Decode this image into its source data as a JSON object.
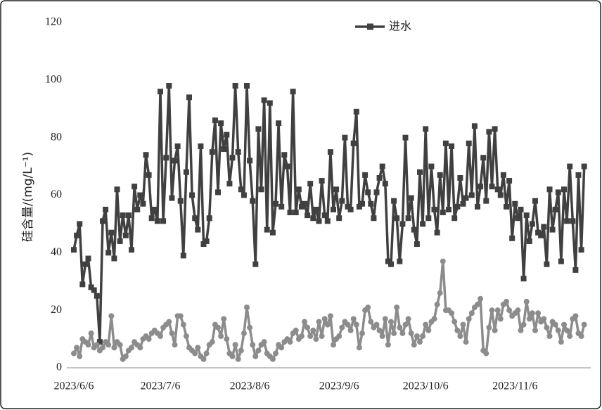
{
  "chart_data": {
    "type": "line",
    "ylabel": "硅含量/(mg/L⁻¹)",
    "categories": [
      "2023/6/6",
      null,
      null,
      null,
      null,
      null,
      null,
      null,
      null,
      null,
      null,
      null,
      null,
      null,
      null,
      null,
      null,
      null,
      null,
      null,
      null,
      null,
      null,
      null,
      null,
      null,
      null,
      null,
      null,
      null,
      "2023/7/6",
      null,
      null,
      null,
      null,
      null,
      null,
      null,
      null,
      null,
      null,
      null,
      null,
      null,
      null,
      null,
      null,
      null,
      null,
      null,
      null,
      null,
      null,
      null,
      null,
      null,
      null,
      null,
      null,
      null,
      null,
      "2023/8/6",
      null,
      null,
      null,
      null,
      null,
      null,
      null,
      null,
      null,
      null,
      null,
      null,
      null,
      null,
      null,
      null,
      null,
      null,
      null,
      null,
      null,
      null,
      null,
      null,
      null,
      null,
      null,
      null,
      null,
      null,
      "2023/9/6",
      null,
      null,
      null,
      null,
      null,
      null,
      null,
      null,
      null,
      null,
      null,
      null,
      null,
      null,
      null,
      null,
      null,
      null,
      null,
      null,
      null,
      null,
      null,
      null,
      null,
      null,
      null,
      null,
      null,
      "2023/10/6",
      null,
      null,
      null,
      null,
      null,
      null,
      null,
      null,
      null,
      null,
      null,
      null,
      null,
      null,
      null,
      null,
      null,
      null,
      null,
      null,
      null,
      null,
      null,
      null,
      null,
      null,
      null,
      null,
      null,
      null,
      "2023/11/6",
      null,
      null,
      null,
      null,
      null,
      null,
      null,
      null,
      null,
      null,
      null,
      null,
      null,
      null,
      null,
      null,
      null,
      null,
      null,
      null,
      null,
      null,
      null,
      null
    ],
    "series": [
      {
        "name": "进水",
        "color": "#404040",
        "marker": "square",
        "values": [
          41,
          46,
          50,
          29,
          36,
          38,
          28,
          27,
          25,
          9,
          51,
          55,
          40,
          47,
          38,
          62,
          44,
          53,
          46,
          53,
          41,
          63,
          55,
          60,
          57,
          74,
          67,
          52,
          55,
          51,
          96,
          51,
          73,
          98,
          59,
          72,
          77,
          58,
          39,
          68,
          94,
          60,
          52,
          48,
          77,
          43,
          44,
          52,
          75,
          86,
          61,
          85,
          76,
          81,
          64,
          73,
          98,
          75,
          62,
          60,
          98,
          72,
          58,
          36,
          83,
          62,
          93,
          48,
          92,
          47,
          57,
          85,
          56,
          74,
          70,
          54,
          96,
          54,
          62,
          56,
          57,
          53,
          64,
          52,
          55,
          51,
          65,
          53,
          51,
          75,
          55,
          62,
          52,
          58,
          80,
          56,
          55,
          78,
          89,
          56,
          57,
          67,
          61,
          57,
          52,
          61,
          66,
          70,
          64,
          37,
          36,
          58,
          52,
          37,
          50,
          80,
          52,
          59,
          48,
          43,
          68,
          50,
          83,
          52,
          70,
          55,
          47,
          67,
          54,
          78,
          55,
          77,
          52,
          56,
          66,
          57,
          59,
          78,
          60,
          84,
          56,
          63,
          73,
          58,
          82,
          63,
          83,
          62,
          60,
          67,
          56,
          65,
          45,
          57,
          52,
          55,
          31,
          53,
          44,
          50,
          58,
          47,
          46,
          49,
          36,
          62,
          48,
          55,
          61,
          37,
          62,
          51,
          70,
          51,
          34,
          67,
          41,
          70
        ]
      },
      {
        "color": "#8c8c8c",
        "marker": "circle",
        "values": [
          5,
          7,
          4,
          10,
          9,
          8,
          12,
          7,
          8,
          6,
          7,
          9,
          8,
          18,
          7,
          9,
          8,
          3,
          4,
          6,
          7,
          9,
          8,
          7,
          10,
          11,
          10,
          12,
          13,
          12,
          11,
          14,
          15,
          16,
          12,
          8,
          18,
          18,
          15,
          11,
          7,
          6,
          5,
          7,
          4,
          3,
          5,
          8,
          9,
          15,
          14,
          11,
          17,
          10,
          5,
          4,
          8,
          3,
          6,
          12,
          21,
          14,
          8,
          4,
          6,
          8,
          9,
          5,
          4,
          3,
          5,
          8,
          7,
          9,
          10,
          9,
          12,
          13,
          10,
          11,
          16,
          14,
          11,
          13,
          10,
          16,
          11,
          17,
          15,
          18,
          8,
          10,
          11,
          14,
          16,
          15,
          13,
          17,
          15,
          7,
          12,
          20,
          21,
          16,
          14,
          15,
          13,
          11,
          17,
          8,
          16,
          12,
          21,
          14,
          12,
          15,
          17,
          12,
          8,
          11,
          9,
          11,
          15,
          13,
          16,
          17,
          22,
          26,
          37,
          20,
          20,
          19,
          16,
          13,
          11,
          15,
          9,
          17,
          19,
          21,
          22,
          24,
          6,
          5,
          14,
          20,
          13,
          20,
          17,
          22,
          23,
          20,
          18,
          19,
          20,
          13,
          15,
          23,
          17,
          19,
          13,
          19,
          16,
          17,
          14,
          11,
          16,
          15,
          13,
          9,
          15,
          13,
          11,
          17,
          18,
          12,
          11,
          15
        ]
      }
    ],
    "ylim": [
      0,
      120
    ],
    "yticks": [
      0,
      20,
      40,
      60,
      80,
      100,
      120
    ],
    "grid": false,
    "legend": "top"
  }
}
